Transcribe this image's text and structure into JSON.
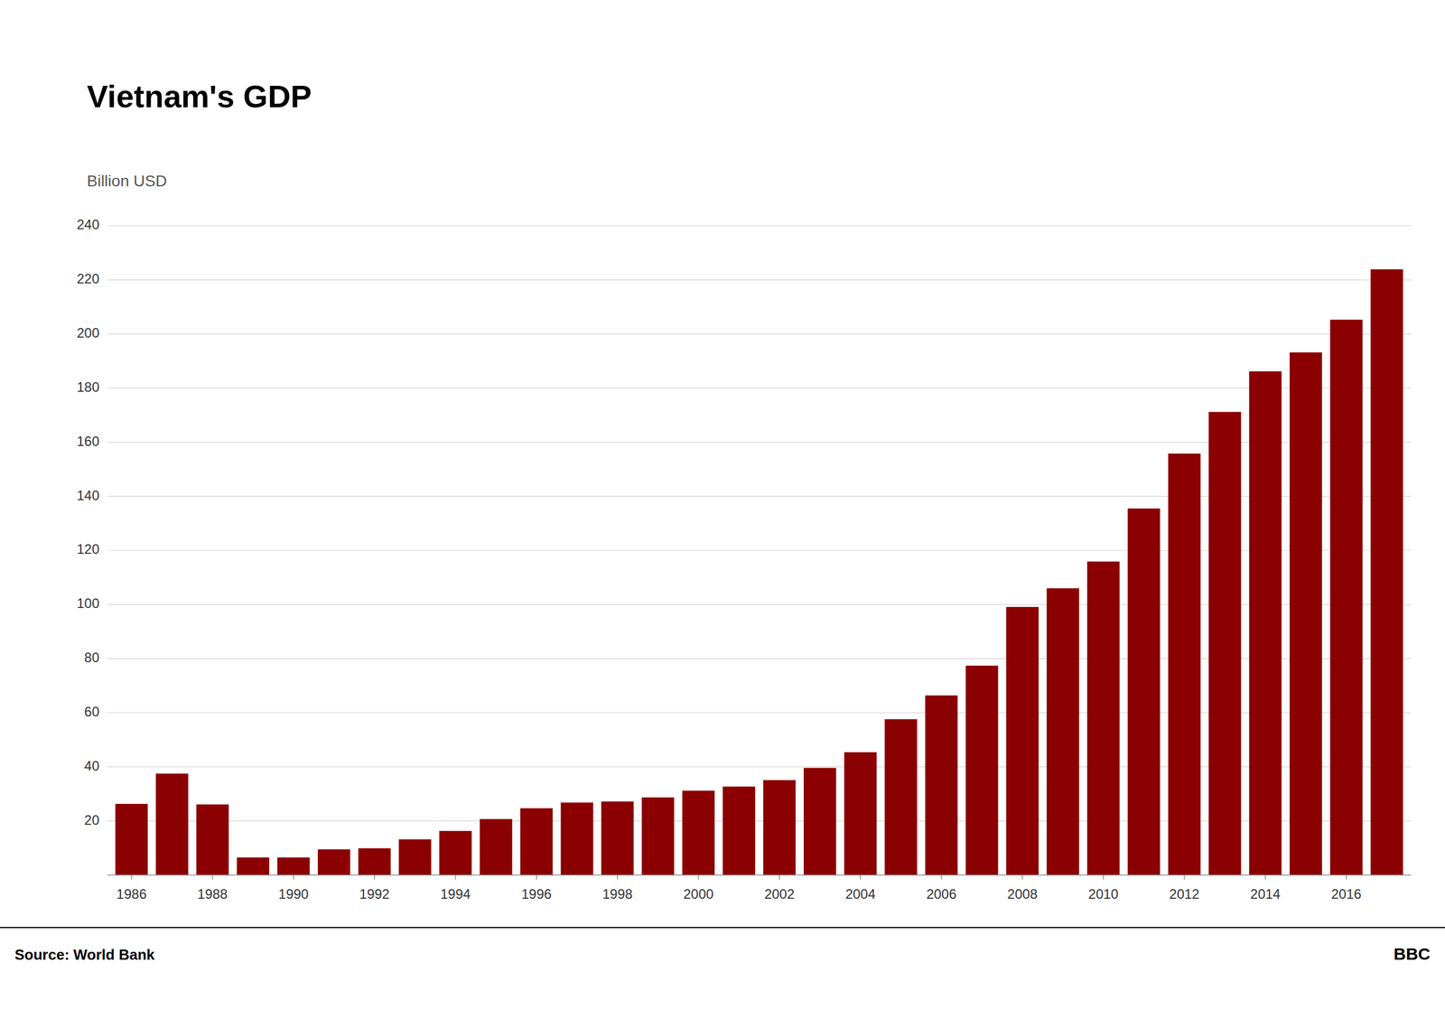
{
  "chart_data": {
    "type": "bar",
    "title": "Vietnam's GDP",
    "y_label": "Billion USD",
    "annotations": [
      "Source: World Bank",
      "BBC"
    ],
    "x": [
      1986,
      1987,
      1988,
      1989,
      1990,
      1991,
      1992,
      1993,
      1994,
      1995,
      1996,
      1997,
      1998,
      1999,
      2000,
      2001,
      2002,
      2003,
      2004,
      2005,
      2006,
      2007,
      2008,
      2009,
      2010,
      2011,
      2012,
      2013,
      2014,
      2015,
      2016,
      2017
    ],
    "values": [
      26.3,
      37.5,
      26.1,
      6.5,
      6.5,
      9.5,
      9.9,
      13.2,
      16.3,
      20.7,
      24.7,
      26.8,
      27.2,
      28.7,
      31.2,
      32.7,
      35.1,
      39.6,
      45.4,
      57.6,
      66.4,
      77.4,
      99.1,
      106.0,
      115.9,
      135.5,
      155.8,
      171.2,
      186.2,
      193.2,
      205.3,
      223.9
    ],
    "color": "#8B0000",
    "xlim": [
      1985.4,
      2017.6
    ],
    "xticks": [
      1986,
      1988,
      1990,
      1992,
      1994,
      1996,
      1998,
      2000,
      2002,
      2004,
      2006,
      2008,
      2010,
      2012,
      2014,
      2016
    ],
    "ylim": [
      0,
      240
    ],
    "yticks": [
      20,
      40,
      60,
      80,
      100,
      120,
      140,
      160,
      180,
      200,
      220,
      240
    ],
    "grid": true
  }
}
